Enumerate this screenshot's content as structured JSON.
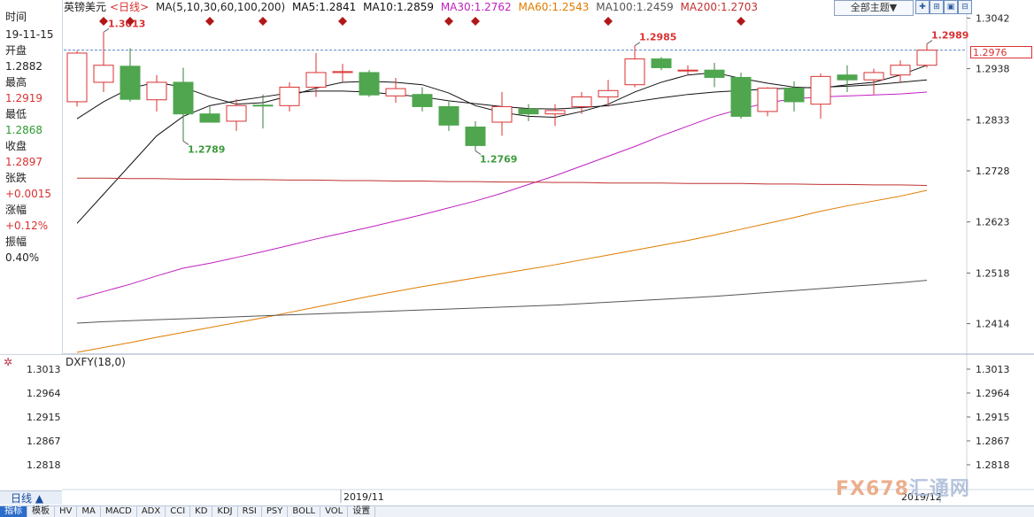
{
  "header": {
    "symbol": "英镑美元",
    "period_tag": "<日线>",
    "ma_params": "MA(5,10,30,60,100,200)",
    "ma_values": [
      {
        "label": "MA5:1.2841",
        "color": "#111111"
      },
      {
        "label": "MA10:1.2859",
        "color": "#111111"
      },
      {
        "label": "MA30:1.2762",
        "color": "#c020c0"
      },
      {
        "label": "MA60:1.2543",
        "color": "#e07c00"
      },
      {
        "label": "MA100:1.2459",
        "color": "#555555"
      },
      {
        "label": "MA200:1.2703",
        "color": "#c03030"
      }
    ],
    "topic_select": "全部主题▼"
  },
  "left_panel": {
    "time_label": "时间",
    "time_value": "19-11-15",
    "open_label": "开盘",
    "open_value": "1.2882",
    "high_label": "最高",
    "high_value": "1.2919",
    "low_label": "最低",
    "low_value": "1.2868",
    "close_label": "收盘",
    "close_value": "1.2897",
    "change_label": "张跌",
    "change_value": "+0.0015",
    "pct_label": "涨幅",
    "pct_value": "+0.12%",
    "amp_label": "振幅",
    "amp_value": "0.40%"
  },
  "subchart": {
    "title": "DXFY(18,0)",
    "ticks": [
      "1.3013",
      "1.2964",
      "1.2915",
      "1.2867",
      "1.2818"
    ]
  },
  "footer": {
    "period_tab": "日线 ▲",
    "date_left": "2019/11",
    "date_right": "2019/12",
    "tabs": [
      "指标",
      "模板",
      "HV",
      "MA",
      "MACD",
      "ADX",
      "CCI",
      "KD",
      "KDJ",
      "RSI",
      "PSY",
      "BOLL",
      "VOL",
      "设置"
    ],
    "watermark_a": "FX678",
    "watermark_b": "汇通网"
  },
  "chart_data": {
    "type": "candlestick",
    "title": "英镑美元<日线>",
    "y_ticks": [
      "1.3042",
      "1.2938",
      "1.2833",
      "1.2728",
      "1.2623",
      "1.2518",
      "1.2414"
    ],
    "ylim": [
      1.2355,
      1.305
    ],
    "current_price": "1.2976",
    "annotations": [
      {
        "text": "1.3013",
        "index": 1,
        "value": 1.3013,
        "kind": "high"
      },
      {
        "text": "1.2789",
        "index": 4,
        "value": 1.2789,
        "kind": "low"
      },
      {
        "text": "1.2769",
        "index": 15,
        "value": 1.2769,
        "kind": "low"
      },
      {
        "text": "1.2985",
        "index": 21,
        "value": 1.2985,
        "kind": "high"
      },
      {
        "text": "1.2989",
        "index": 32,
        "value": 1.2989,
        "kind": "high"
      }
    ],
    "event_markers": [
      1,
      2,
      5,
      7,
      10,
      14,
      15,
      20,
      25
    ],
    "candles": [
      {
        "o": 1.287,
        "h": 1.2975,
        "l": 1.286,
        "c": 1.297
      },
      {
        "o": 1.291,
        "h": 1.3013,
        "l": 1.289,
        "c": 1.2945
      },
      {
        "o": 1.2943,
        "h": 1.298,
        "l": 1.287,
        "c": 1.2875
      },
      {
        "o": 1.2874,
        "h": 1.2925,
        "l": 1.285,
        "c": 1.291
      },
      {
        "o": 1.291,
        "h": 1.294,
        "l": 1.2789,
        "c": 1.2845
      },
      {
        "o": 1.2845,
        "h": 1.286,
        "l": 1.283,
        "c": 1.2828
      },
      {
        "o": 1.283,
        "h": 1.2875,
        "l": 1.281,
        "c": 1.2862
      },
      {
        "o": 1.2863,
        "h": 1.2885,
        "l": 1.2815,
        "c": 1.2862
      },
      {
        "o": 1.2862,
        "h": 1.291,
        "l": 1.285,
        "c": 1.29
      },
      {
        "o": 1.29,
        "h": 1.297,
        "l": 1.288,
        "c": 1.293
      },
      {
        "o": 1.293,
        "h": 1.2948,
        "l": 1.291,
        "c": 1.2932
      },
      {
        "o": 1.293,
        "h": 1.2935,
        "l": 1.288,
        "c": 1.2884
      },
      {
        "o": 1.2882,
        "h": 1.2919,
        "l": 1.2868,
        "c": 1.2897
      },
      {
        "o": 1.2885,
        "h": 1.29,
        "l": 1.285,
        "c": 1.286
      },
      {
        "o": 1.286,
        "h": 1.287,
        "l": 1.281,
        "c": 1.2822
      },
      {
        "o": 1.2818,
        "h": 1.283,
        "l": 1.2769,
        "c": 1.278
      },
      {
        "o": 1.2828,
        "h": 1.289,
        "l": 1.28,
        "c": 1.286
      },
      {
        "o": 1.2855,
        "h": 1.2865,
        "l": 1.283,
        "c": 1.2845
      },
      {
        "o": 1.2845,
        "h": 1.2865,
        "l": 1.282,
        "c": 1.2852
      },
      {
        "o": 1.286,
        "h": 1.289,
        "l": 1.2845,
        "c": 1.288
      },
      {
        "o": 1.288,
        "h": 1.2915,
        "l": 1.286,
        "c": 1.2893
      },
      {
        "o": 1.2905,
        "h": 1.2985,
        "l": 1.29,
        "c": 1.2958
      },
      {
        "o": 1.2958,
        "h": 1.2962,
        "l": 1.2935,
        "c": 1.294
      },
      {
        "o": 1.2935,
        "h": 1.2945,
        "l": 1.2925,
        "c": 1.2935
      },
      {
        "o": 1.2935,
        "h": 1.295,
        "l": 1.29,
        "c": 1.292
      },
      {
        "o": 1.292,
        "h": 1.293,
        "l": 1.2835,
        "c": 1.284
      },
      {
        "o": 1.285,
        "h": 1.29,
        "l": 1.284,
        "c": 1.2898
      },
      {
        "o": 1.2898,
        "h": 1.2912,
        "l": 1.285,
        "c": 1.287
      },
      {
        "o": 1.2865,
        "h": 1.2928,
        "l": 1.2835,
        "c": 1.2922
      },
      {
        "o": 1.2925,
        "h": 1.2945,
        "l": 1.289,
        "c": 1.2915
      },
      {
        "o": 1.2915,
        "h": 1.2938,
        "l": 1.2885,
        "c": 1.293
      },
      {
        "o": 1.2925,
        "h": 1.2955,
        "l": 1.291,
        "c": 1.2945
      },
      {
        "o": 1.2945,
        "h": 1.2989,
        "l": 1.294,
        "c": 1.2976
      }
    ],
    "ma_lines": [
      {
        "name": "MA5",
        "color": "#111111",
        "values": [
          1.2835,
          1.287,
          1.2898,
          1.291,
          1.29,
          1.288,
          1.2865,
          1.2868,
          1.2882,
          1.2898,
          1.291,
          1.2912,
          1.291,
          1.2905,
          1.2888,
          1.2862,
          1.2848,
          1.284,
          1.2838,
          1.285,
          1.2865,
          1.289,
          1.291,
          1.2925,
          1.293,
          1.2918,
          1.2908,
          1.29,
          1.2898,
          1.2905,
          1.291,
          1.2925,
          1.2945
        ]
      },
      {
        "name": "MA10",
        "color": "#111111",
        "values": [
          1.262,
          1.268,
          1.274,
          1.28,
          1.284,
          1.2862,
          1.2872,
          1.288,
          1.2888,
          1.2892,
          1.2892,
          1.289,
          1.2885,
          1.288,
          1.2872,
          1.2866,
          1.286,
          1.2856,
          1.2855,
          1.2858,
          1.2862,
          1.287,
          1.2878,
          1.2885,
          1.289,
          1.2893,
          1.2896,
          1.2898,
          1.29,
          1.2902,
          1.2905,
          1.291,
          1.2915
        ]
      },
      {
        "name": "MA30",
        "color": "#c020c0",
        "values": [
          1.2465,
          1.248,
          1.2495,
          1.2512,
          1.2528,
          1.2538,
          1.255,
          1.2562,
          1.2575,
          1.2588,
          1.26,
          1.2612,
          1.2625,
          1.2638,
          1.2652,
          1.2666,
          1.2682,
          1.27,
          1.2718,
          1.2738,
          1.2758,
          1.2778,
          1.28,
          1.282,
          1.284,
          1.2855,
          1.2868,
          1.2876,
          1.288,
          1.2882,
          1.2884,
          1.2886,
          1.289
        ]
      },
      {
        "name": "MA60",
        "color": "#e07c00",
        "values": [
          1.2355,
          1.2365,
          1.2375,
          1.2386,
          1.2396,
          1.2406,
          1.2416,
          1.2426,
          1.2437,
          1.2448,
          1.2459,
          1.247,
          1.248,
          1.249,
          1.2499,
          1.2508,
          1.2517,
          1.2526,
          1.2535,
          1.2545,
          1.2555,
          1.2565,
          1.2575,
          1.2585,
          1.2596,
          1.2608,
          1.262,
          1.2632,
          1.2645,
          1.2656,
          1.2666,
          1.2676,
          1.2688
        ]
      },
      {
        "name": "MA100",
        "color": "#555555",
        "values": [
          1.2415,
          1.2418,
          1.242,
          1.2422,
          1.2424,
          1.2426,
          1.2428,
          1.243,
          1.2432,
          1.2434,
          1.2436,
          1.2438,
          1.244,
          1.2442,
          1.2444,
          1.2446,
          1.2448,
          1.245,
          1.2452,
          1.2455,
          1.2458,
          1.2461,
          1.2464,
          1.2467,
          1.247,
          1.2474,
          1.2478,
          1.2482,
          1.2486,
          1.249,
          1.2494,
          1.2498,
          1.2503
        ]
      },
      {
        "name": "MA200",
        "color": "#c03030",
        "values": [
          1.2713,
          1.2713,
          1.2712,
          1.2712,
          1.2711,
          1.2711,
          1.271,
          1.271,
          1.2709,
          1.2709,
          1.2708,
          1.2708,
          1.2707,
          1.2707,
          1.2706,
          1.2706,
          1.2705,
          1.2705,
          1.2704,
          1.2704,
          1.2703,
          1.2703,
          1.2703,
          1.2702,
          1.2702,
          1.2702,
          1.2701,
          1.2701,
          1.27,
          1.27,
          1.2699,
          1.2699,
          1.2698
        ]
      }
    ],
    "colors": {
      "up": "#d93232",
      "down": "#4fa64f",
      "high_label": "#d93232",
      "low_label": "#3d9a3d",
      "marker": "#b01818",
      "grid": "#cfd6e2"
    }
  }
}
